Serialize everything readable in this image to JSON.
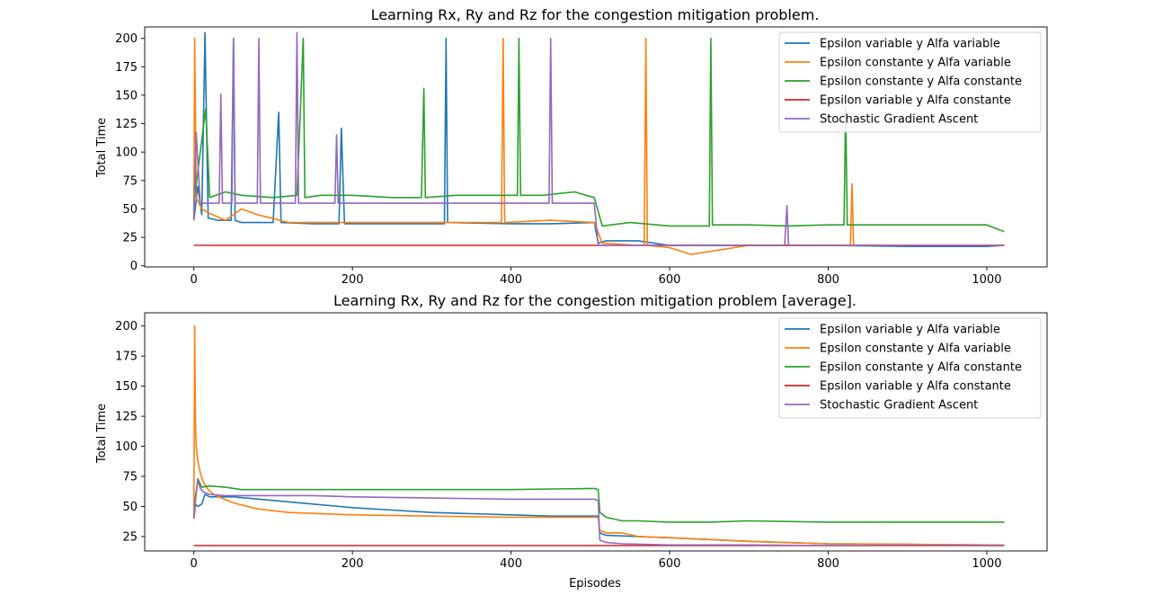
{
  "chart_data": [
    {
      "type": "line",
      "title": "Learning Rx, Ry and Rz for the congestion mitigation problem.",
      "xlabel": "",
      "ylabel": "Total Time",
      "xlim": [
        -62,
        1076
      ],
      "ylim": [
        -1,
        210
      ],
      "xticks": [
        0,
        200,
        400,
        600,
        800,
        1000
      ],
      "yticks": [
        0,
        25,
        50,
        75,
        100,
        125,
        150,
        175,
        200
      ],
      "legend_position": "top-right",
      "series": [
        {
          "name": "Epsilon variable y Alfa variable",
          "color": "#1f77b4",
          "x": [
            0,
            5,
            10,
            14,
            18,
            30,
            47,
            50,
            52,
            60,
            100,
            107,
            110,
            150,
            183,
            186,
            190,
            250,
            300,
            316,
            318,
            320,
            400,
            450,
            505,
            510,
            520,
            560,
            600,
            700,
            800,
            900,
            1000,
            1022
          ],
          "y": [
            40,
            70,
            45,
            205,
            42,
            40,
            40,
            200,
            40,
            38,
            38,
            135,
            38,
            37,
            37,
            121,
            37,
            37,
            37,
            37,
            200,
            38,
            37,
            37,
            38,
            20,
            22,
            22,
            18,
            18,
            18,
            17,
            17,
            18
          ]
        },
        {
          "name": "Epsilon constante y Alfa variable",
          "color": "#ff7f0e",
          "x": [
            0,
            1,
            3,
            10,
            20,
            40,
            60,
            80,
            120,
            200,
            300,
            388,
            390,
            392,
            450,
            505,
            515,
            560,
            568,
            570,
            572,
            600,
            627,
            700,
            800,
            828,
            830,
            832,
            900,
            1000,
            1022
          ],
          "y": [
            40,
            200,
            60,
            50,
            46,
            40,
            50,
            45,
            38,
            38,
            38,
            38,
            200,
            38,
            40,
            38,
            20,
            18,
            18,
            200,
            18,
            16,
            10,
            18,
            18,
            18,
            72,
            18,
            18,
            18,
            18
          ]
        },
        {
          "name": "Epsilon constante y Alfa constante",
          "color": "#2ca02c",
          "x": [
            0,
            15,
            20,
            40,
            60,
            100,
            130,
            138,
            140,
            160,
            200,
            250,
            287,
            290,
            292,
            330,
            380,
            408,
            410,
            412,
            440,
            480,
            505,
            515,
            550,
            600,
            650,
            652,
            654,
            700,
            750,
            800,
            820,
            822,
            824,
            850,
            900,
            950,
            1000,
            1022
          ],
          "y": [
            55,
            138,
            60,
            65,
            62,
            60,
            62,
            200,
            60,
            62,
            62,
            60,
            60,
            156,
            60,
            62,
            62,
            62,
            200,
            62,
            62,
            65,
            60,
            35,
            38,
            35,
            35,
            200,
            36,
            36,
            35,
            36,
            36,
            140,
            36,
            36,
            36,
            36,
            36,
            30
          ]
        },
        {
          "name": "Epsilon variable y Alfa constante",
          "color": "#d62728",
          "x": [
            0,
            1022
          ],
          "y": [
            18,
            18
          ]
        },
        {
          "name": "Stochastic Gradient Ascent",
          "color": "#9467bd",
          "x": [
            0,
            3,
            8,
            20,
            32,
            34,
            36,
            48,
            50,
            52,
            80,
            82,
            84,
            100,
            128,
            130,
            132,
            178,
            180,
            182,
            250,
            300,
            400,
            448,
            450,
            452,
            480,
            505,
            510,
            520,
            600,
            700,
            745,
            748,
            750,
            800,
            900,
            1000,
            1022
          ],
          "y": [
            40,
            117,
            55,
            55,
            55,
            151,
            55,
            55,
            200,
            55,
            55,
            200,
            55,
            55,
            55,
            205,
            55,
            55,
            115,
            55,
            55,
            55,
            55,
            55,
            200,
            55,
            55,
            55,
            18,
            18,
            18,
            18,
            18,
            53,
            18,
            18,
            18,
            18,
            18
          ]
        }
      ]
    },
    {
      "type": "line",
      "title": "Learning Rx, Ry and Rz for the congestion mitigation problem [average].",
      "xlabel": "Episodes",
      "ylabel": "Total Time",
      "xlim": [
        -62,
        1076
      ],
      "ylim": [
        13,
        211
      ],
      "xticks": [
        0,
        200,
        400,
        600,
        800,
        1000
      ],
      "yticks": [
        25,
        50,
        75,
        100,
        125,
        150,
        175,
        200
      ],
      "legend_position": "top-right",
      "series": [
        {
          "name": "Epsilon variable y Alfa variable",
          "color": "#1f77b4",
          "x": [
            0,
            2,
            5,
            10,
            14,
            20,
            30,
            50,
            100,
            150,
            200,
            250,
            300,
            350,
            400,
            450,
            510,
            512,
            520,
            560,
            600,
            700,
            800,
            900,
            1000,
            1022
          ],
          "y": [
            40,
            52,
            50,
            52,
            60,
            58,
            58,
            58,
            55,
            52,
            49,
            47,
            45,
            44,
            43,
            42,
            42,
            28,
            26,
            25,
            24,
            21,
            19,
            18.5,
            18,
            18
          ]
        },
        {
          "name": "Epsilon constante y Alfa variable",
          "color": "#ff7f0e",
          "x": [
            0,
            1,
            2,
            3,
            5,
            8,
            12,
            18,
            25,
            35,
            50,
            80,
            120,
            200,
            300,
            400,
            510,
            512,
            520,
            540,
            560,
            600,
            700,
            800,
            900,
            1000,
            1022
          ],
          "y": [
            40,
            200,
            120,
            100,
            88,
            78,
            70,
            64,
            60,
            57,
            53,
            48,
            45,
            43,
            42,
            41,
            41,
            30,
            28,
            28,
            25,
            24,
            21,
            19,
            18.5,
            18,
            18
          ]
        },
        {
          "name": "Epsilon constante y Alfa constante",
          "color": "#2ca02c",
          "x": [
            0,
            2,
            5,
            10,
            20,
            40,
            60,
            100,
            200,
            300,
            400,
            505,
            510,
            512,
            520,
            540,
            560,
            600,
            650,
            700,
            800,
            900,
            1000,
            1022
          ],
          "y": [
            40,
            55,
            73,
            66,
            67,
            66,
            64,
            64,
            64,
            64,
            64,
            65,
            64,
            45,
            41,
            38,
            38,
            37,
            37,
            38,
            37,
            37,
            37,
            37
          ]
        },
        {
          "name": "Epsilon variable y Alfa constante",
          "color": "#d62728",
          "x": [
            0,
            1022
          ],
          "y": [
            17.5,
            17.5
          ]
        },
        {
          "name": "Stochastic Gradient Ascent",
          "color": "#9467bd",
          "x": [
            0,
            2,
            5,
            8,
            12,
            20,
            40,
            60,
            100,
            150,
            200,
            300,
            400,
            505,
            510,
            512,
            520,
            540,
            600,
            700,
            800,
            900,
            1000,
            1022
          ],
          "y": [
            40,
            58,
            72,
            65,
            62,
            60,
            59,
            59,
            59,
            59,
            58,
            57,
            56,
            56,
            55,
            22,
            20,
            19,
            18,
            18,
            17.5,
            17.5,
            17.5,
            17.5
          ]
        }
      ]
    }
  ]
}
